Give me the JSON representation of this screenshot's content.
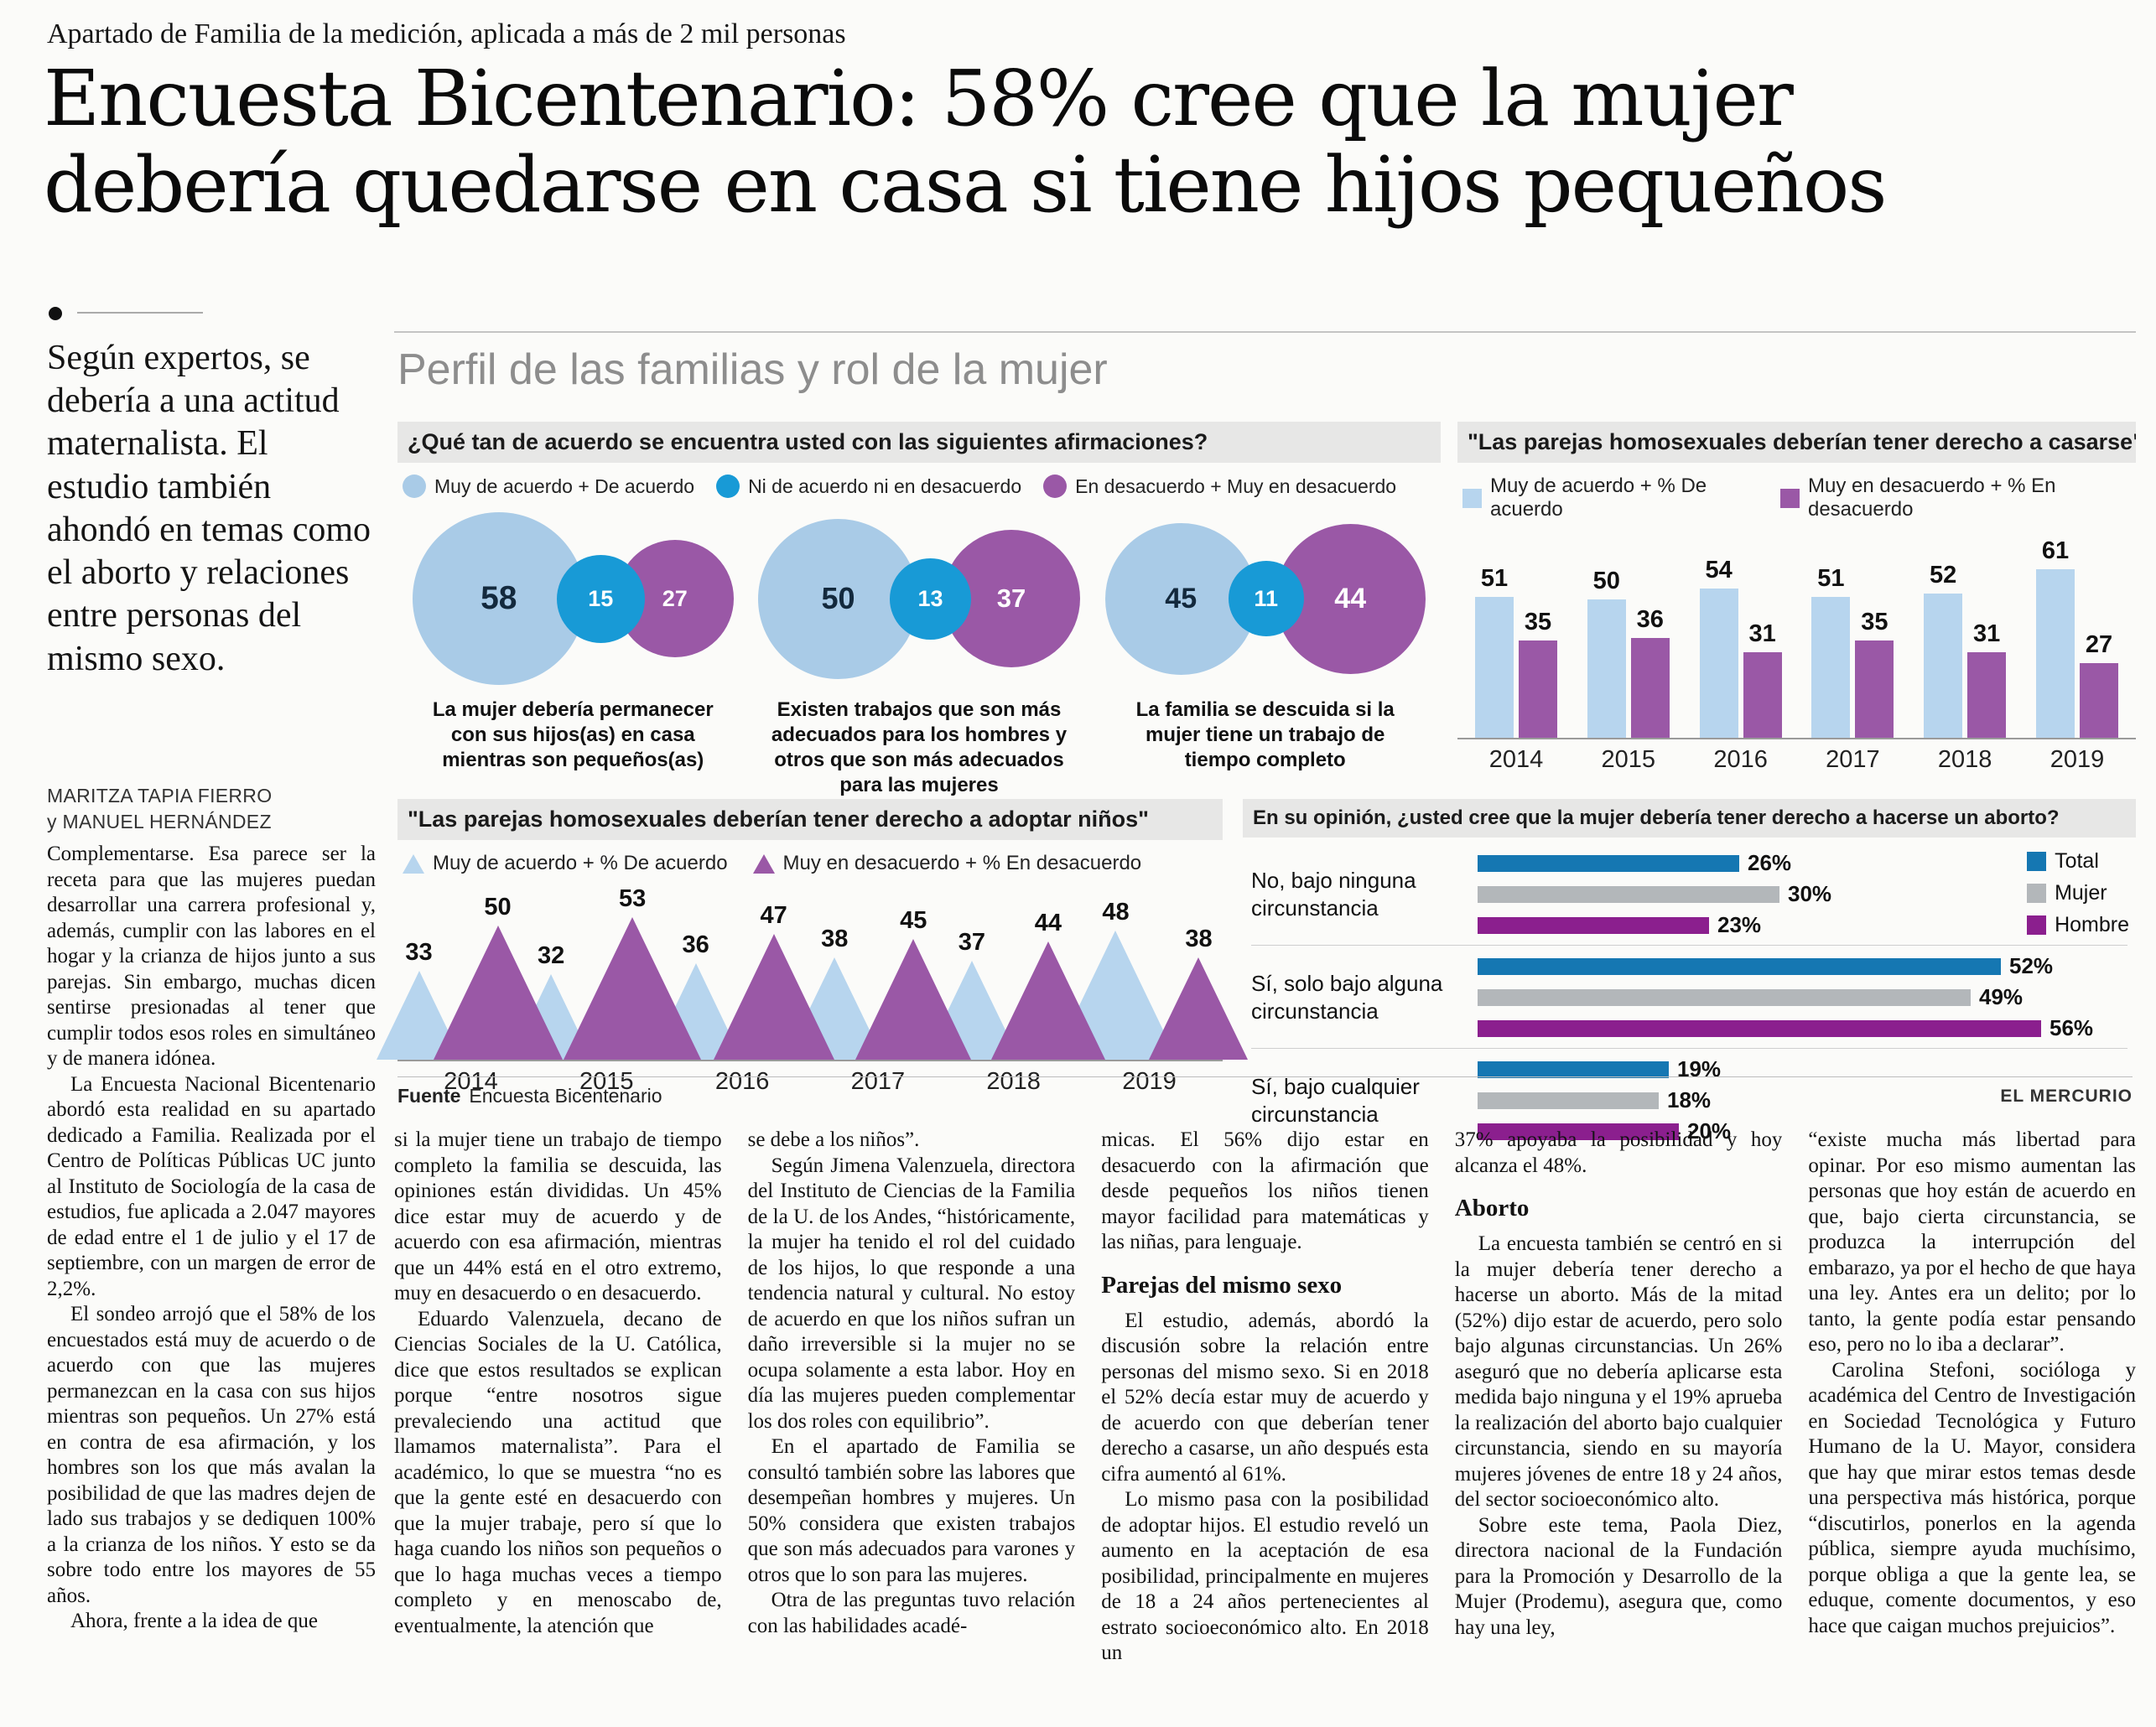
{
  "page": {
    "kicker": "Apartado de Familia de la medición, aplicada a más de 2 mil personas",
    "headline_line1": "Encuesta Bicentenario: 58% cree que la mujer",
    "headline_line2": "debería quedarse en casa si tiene hijos pequeños",
    "deck": "Según expertos, se debería a una actitud maternalista. El estudio también ahondó en temas como el aborto y relaciones entre personas del mismo sexo.",
    "byline_line1": "MARITZA TAPIA FIERRO",
    "byline_line2": "y MANUEL HERNÁNDEZ",
    "source_label": "Fuente",
    "source_value": "Encuesta Bicentenario",
    "credit": "EL MERCURIO"
  },
  "infographic": {
    "title": "Perfil de las familias y rol de la mujer"
  },
  "chart_data": [
    {
      "type": "bubble",
      "title": "¿Qué tan de acuerdo se encuentra usted con las siguientes afirmaciones?",
      "legend": [
        {
          "label": "Muy de acuerdo + De acuerdo",
          "color": "#a9cbe7"
        },
        {
          "label": "Ni de acuerdo ni en desacuerdo",
          "color": "#189ad6"
        },
        {
          "label": "En desacuerdo + Muy en desacuerdo",
          "color": "#9a58a6"
        }
      ],
      "items": [
        {
          "agree": 58,
          "neutral": 15,
          "disagree": 27,
          "caption": "La mujer debería permanecer con sus hijos(as) en casa mientras son pequeños(as)"
        },
        {
          "agree": 50,
          "neutral": 13,
          "disagree": 37,
          "caption": "Existen trabajos que son más adecuados para los hombres y otros que son más adecuados para las mujeres"
        },
        {
          "agree": 45,
          "neutral": 11,
          "disagree": 44,
          "caption": "La familia se descuida si la mujer tiene un trabajo de tiempo completo"
        }
      ]
    },
    {
      "type": "bar",
      "title": "\"Las parejas homosexuales deberían tener derecho a casarse\"",
      "categories": [
        "2014",
        "2015",
        "2016",
        "2017",
        "2018",
        "2019"
      ],
      "series": [
        {
          "name": "Muy de acuerdo + % De acuerdo",
          "color": "#b7d5ee",
          "values": [
            51,
            50,
            54,
            51,
            52,
            61
          ]
        },
        {
          "name": "Muy en desacuerdo + % En desacuerdo",
          "color": "#9a58a6",
          "values": [
            35,
            36,
            31,
            35,
            31,
            27
          ]
        }
      ],
      "ylim": [
        0,
        70
      ]
    },
    {
      "type": "triangle-bar",
      "title": "\"Las parejas homosexuales deberían tener derecho a adoptar niños\"",
      "categories": [
        "2014",
        "2015",
        "2016",
        "2017",
        "2018",
        "2019"
      ],
      "series": [
        {
          "name": "Muy de acuerdo + % De acuerdo",
          "color": "#b7d5ee",
          "values": [
            33,
            32,
            36,
            38,
            37,
            48
          ]
        },
        {
          "name": "Muy en desacuerdo + % En desacuerdo",
          "color": "#9a58a6",
          "values": [
            50,
            53,
            47,
            45,
            44,
            38
          ]
        }
      ],
      "ylim": [
        0,
        60
      ]
    },
    {
      "type": "bar-horizontal",
      "title": "En su opinión, ¿usted cree que la mujer debería tener derecho a hacerse un aborto?",
      "categories": [
        "No, bajo ninguna circunstancia",
        "Sí, solo bajo alguna circunstancia",
        "Sí, bajo cualquier circunstancia"
      ],
      "series": [
        {
          "name": "Total",
          "color": "#1577b2",
          "values": [
            26,
            52,
            19
          ]
        },
        {
          "name": "Mujer",
          "color": "#b3b7ba",
          "values": [
            30,
            49,
            18
          ]
        },
        {
          "name": "Hombre",
          "color": "#8b1f8e",
          "values": [
            23,
            56,
            20
          ]
        }
      ],
      "value_suffix": "%",
      "xlim": [
        0,
        60
      ]
    }
  ],
  "body": {
    "columns": [
      {
        "blocks": [
          {
            "t": "p",
            "indent": false,
            "text": "Complementarse. Esa parece ser la receta para que las mujeres puedan desarrollar una carrera profesional y, además, cumplir con las labores en el hogar y la crianza de hijos junto a sus parejas. Sin embargo, muchas dicen sentirse presionadas al tener que cumplir todos esos roles en simultáneo y de manera idónea."
          },
          {
            "t": "p",
            "indent": true,
            "text": "La Encuesta Nacional Bicentenario abordó esta realidad en su apartado dedicado a Familia. Realizada por el Centro de Políticas Públicas UC junto al Instituto de Sociología de la casa de estudios, fue aplicada a 2.047 mayores de edad entre el 1 de julio y el 17 de septiembre, con un margen de error de 2,2%."
          },
          {
            "t": "p",
            "indent": true,
            "text": "El sondeo arrojó que el 58% de los encuestados está muy de acuerdo o de acuerdo con que las mujeres permanezcan en la casa con sus hijos mientras son pequeños. Un 27% está en contra de esa afirmación, y los hombres son los que más avalan la posibilidad de que las madres dejen de lado sus trabajos y se dediquen 100% a la crianza de los niños. Y esto se da sobre todo entre los mayores de 55 años."
          },
          {
            "t": "p",
            "indent": true,
            "text": "Ahora, frente a la idea de que"
          }
        ]
      },
      {
        "blocks": [
          {
            "t": "p",
            "indent": false,
            "text": "si la mujer tiene un trabajo de tiempo completo la familia se descuida, las opiniones están divididas. Un 45% dice estar muy de acuerdo y de acuerdo con esa afirmación, mientras que un 44% está en el otro extremo, muy en desacuerdo o en desacuerdo."
          },
          {
            "t": "p",
            "indent": true,
            "text": "Eduardo Valenzuela, decano de Ciencias Sociales de la U. Católica, dice que estos resultados se explican porque “entre nosotros sigue prevaleciendo una actitud que llamamos maternalista”. Para el académico, lo que se muestra “no es que la gente esté en desacuerdo con que la mujer trabaje, pero sí que lo haga cuando los niños son pequeños o que lo haga muchas veces a tiempo completo y en menoscabo de, eventualmente, la atención que"
          }
        ]
      },
      {
        "blocks": [
          {
            "t": "p",
            "indent": false,
            "text": "se debe a los niños”."
          },
          {
            "t": "p",
            "indent": true,
            "text": "Según Jimena Valenzuela, directora del Instituto de Ciencias de la Familia de la U. de los Andes, “históricamente, la mujer ha tenido el rol del cuidado de los hijos, lo que responde a una tendencia natural y cultural. No estoy de acuerdo en que los niños sufran un daño irreversible si la mujer no se ocupa solamente a esta labor. Hoy en día las mujeres pueden complementar los dos roles con equilibrio”."
          },
          {
            "t": "p",
            "indent": true,
            "text": "En el apartado de Familia se consultó también sobre las labores que desempeñan hombres y mujeres. Un 50% considera que existen trabajos que son más adecuados para varones y otros que lo son para las mujeres."
          },
          {
            "t": "p",
            "indent": true,
            "text": "Otra de las preguntas tuvo relación con las habilidades acadé-"
          }
        ]
      },
      {
        "blocks": [
          {
            "t": "p",
            "indent": false,
            "text": "micas. El 56% dijo estar en desacuerdo con la afirmación que desde pequeños los niños tienen mayor facilidad para matemáticas y las niñas, para lenguaje."
          },
          {
            "t": "h",
            "text": "Parejas del mismo sexo"
          },
          {
            "t": "p",
            "indent": true,
            "text": "El estudio, además, abordó la discusión sobre la relación entre personas del mismo sexo. Si en 2018 el 52% decía estar muy de acuerdo y de acuerdo con que deberían tener derecho a casarse, un año después esta cifra aumentó al 61%."
          },
          {
            "t": "p",
            "indent": true,
            "text": "Lo mismo pasa con la posibilidad de adoptar hijos. El estudio reveló un aumento en la aceptación de esa posibilidad, principalmente en mujeres de 18 a 24 años pertenecientes al estrato socioeconómico alto. En 2018 un"
          }
        ]
      },
      {
        "blocks": [
          {
            "t": "p",
            "indent": false,
            "text": "37% apoyaba la posibilidad y hoy alcanza el 48%."
          },
          {
            "t": "h",
            "text": "Aborto"
          },
          {
            "t": "p",
            "indent": true,
            "text": "La encuesta también se centró en si la mujer debería tener derecho a hacerse un aborto. Más de la mitad (52%) dijo estar de acuerdo, pero solo bajo algunas circunstancias. Un 26% aseguró que no debería aplicarse esta medida bajo ninguna y el 19% aprueba la realización del aborto bajo cualquier circunstancia, siendo en su mayoría mujeres jóvenes de entre 18 y 24 años, del sector socioeconómico alto."
          },
          {
            "t": "p",
            "indent": true,
            "text": "Sobre este tema, Paola Diez, directora nacional de la Fundación para la Promoción y Desarrollo de la Mujer (Prodemu), asegura que, como hay una ley,"
          }
        ]
      },
      {
        "blocks": [
          {
            "t": "p",
            "indent": false,
            "text": "“existe mucha más libertad para opinar. Por eso mismo aumentan las personas que hoy están de acuerdo en que, bajo cierta circunstancia, se produzca la interrupción del embarazo, ya por el hecho de que haya una ley. Antes era un delito; por lo tanto, la gente podía estar pensando eso, pero no lo iba a declarar”."
          },
          {
            "t": "p",
            "indent": true,
            "text": "Carolina Stefoni, socióloga y académica del Centro de Investigación en Sociedad Tecnológica y Futuro Humano de la U. Mayor, considera que hay que mirar estos temas desde una perspectiva más histórica, porque “discutirlos, ponerlos en la agenda pública, siempre ayuda muchísimo, porque obliga a que la gente lea, se eduque, comente documentos, y eso hace que caigan muchos prejuicios”."
          }
        ]
      }
    ]
  }
}
